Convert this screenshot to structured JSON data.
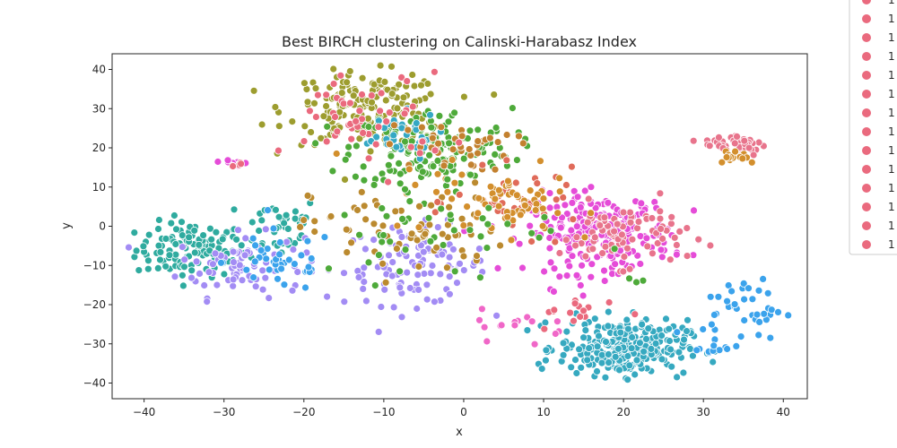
{
  "chart_data": {
    "type": "scatter",
    "title": "Best BIRCH clustering on Calinski-Harabasz Index",
    "xlabel": "x",
    "ylabel": "y",
    "xlim": [
      -44,
      43
    ],
    "ylim": [
      -44,
      44
    ],
    "x_ticks": [
      -40,
      -30,
      -20,
      -10,
      0,
      10,
      20,
      30,
      40
    ],
    "y_ticks": [
      -40,
      -30,
      -20,
      -10,
      0,
      10,
      20,
      30,
      40
    ],
    "x_tick_labels": [
      "−40",
      "−30",
      "−20",
      "−10",
      "0",
      "10",
      "20",
      "30",
      "40"
    ],
    "y_tick_labels": [
      "−40",
      "−30",
      "−20",
      "−10",
      "0",
      "10",
      "20",
      "30",
      "40"
    ],
    "grid": false,
    "legend_position": "right, outside plot (partially cut off)",
    "legend_entries": [
      "1",
      "1",
      "1",
      "1",
      "1",
      "1",
      "1",
      "1",
      "1",
      "1",
      "1",
      "1",
      "1",
      "1"
    ],
    "legend_color": "#ea6a7e",
    "marker": "circle with white edge",
    "clusters": [
      {
        "color": "#2fab9f",
        "center": [
          -34,
          -6
        ],
        "spread": [
          3.5,
          3.5
        ],
        "count": 120
      },
      {
        "color": "#2fab9f",
        "center": [
          -23,
          0
        ],
        "spread": [
          2.5,
          4
        ],
        "count": 40
      },
      {
        "color": "#a38cf4",
        "center": [
          -28,
          -10
        ],
        "spread": [
          4,
          4
        ],
        "count": 80
      },
      {
        "color": "#a38cf4",
        "center": [
          -6,
          -10
        ],
        "spread": [
          4.5,
          5
        ],
        "count": 110
      },
      {
        "color": "#3ba3ec",
        "center": [
          -23,
          -9
        ],
        "spread": [
          3.5,
          4
        ],
        "count": 40
      },
      {
        "color": "#9d9d2f",
        "center": [
          -12,
          30
        ],
        "spread": [
          5,
          4.5
        ],
        "count": 170
      },
      {
        "color": "#4eaa3a",
        "center": [
          -4,
          20
        ],
        "spread": [
          5,
          5
        ],
        "count": 170
      },
      {
        "color": "#35a8c4",
        "center": [
          -9,
          23
        ],
        "spread": [
          3,
          3
        ],
        "count": 35
      },
      {
        "color": "#c3812f",
        "center": [
          -2,
          20
        ],
        "spread": [
          4,
          3
        ],
        "count": 40
      },
      {
        "color": "#bb8a2f",
        "center": [
          -7,
          -1
        ],
        "spread": [
          6,
          6
        ],
        "count": 70
      },
      {
        "color": "#ea6a7e",
        "center": [
          -12,
          27
        ],
        "spread": [
          5,
          6
        ],
        "count": 50
      },
      {
        "color": "#e54cd8",
        "center": [
          17,
          -2
        ],
        "spread": [
          4.5,
          5
        ],
        "count": 240
      },
      {
        "color": "#e8748c",
        "center": [
          20,
          -2
        ],
        "spread": [
          4,
          4
        ],
        "count": 80
      },
      {
        "color": "#e06b5a",
        "center": [
          7,
          6
        ],
        "spread": [
          4,
          4
        ],
        "count": 40
      },
      {
        "color": "#d38f2d",
        "center": [
          7,
          5
        ],
        "spread": [
          3,
          4
        ],
        "count": 40
      },
      {
        "color": "#36a9c0",
        "center": [
          20,
          -31
        ],
        "spread": [
          4,
          3.5
        ],
        "count": 300
      },
      {
        "color": "#3ba3ec",
        "center": [
          35,
          -21
        ],
        "spread": [
          2.5,
          4
        ],
        "count": 40
      },
      {
        "color": "#3ba3ec",
        "center": [
          31,
          -31
        ],
        "spread": [
          1,
          1
        ],
        "count": 10
      },
      {
        "color": "#e8748c",
        "center": [
          34,
          21
        ],
        "spread": [
          2,
          1.5
        ],
        "count": 45
      },
      {
        "color": "#d38f2d",
        "center": [
          34,
          18
        ],
        "spread": [
          1.5,
          1
        ],
        "count": 15
      },
      {
        "color": "#e54cd8",
        "center": [
          -29,
          16
        ],
        "spread": [
          1,
          0.5
        ],
        "count": 8
      },
      {
        "color": "#ea6a7e",
        "center": [
          -28,
          16
        ],
        "spread": [
          0.8,
          0.5
        ],
        "count": 5
      },
      {
        "color": "#f067c8",
        "center": [
          8,
          -25
        ],
        "spread": [
          3,
          2
        ],
        "count": 15
      },
      {
        "color": "#4eaa3a",
        "center": [
          21,
          -14
        ],
        "spread": [
          1,
          0.5
        ],
        "count": 4
      },
      {
        "color": "#ea6a7e",
        "center": [
          15,
          -22
        ],
        "spread": [
          3,
          2
        ],
        "count": 15
      },
      {
        "color": "#d38f2d",
        "center": [
          1,
          8
        ],
        "spread": [
          5,
          5
        ],
        "count": 30
      },
      {
        "color": "#4eaa3a",
        "center": [
          -3,
          0
        ],
        "spread": [
          8,
          7
        ],
        "count": 45
      }
    ]
  }
}
